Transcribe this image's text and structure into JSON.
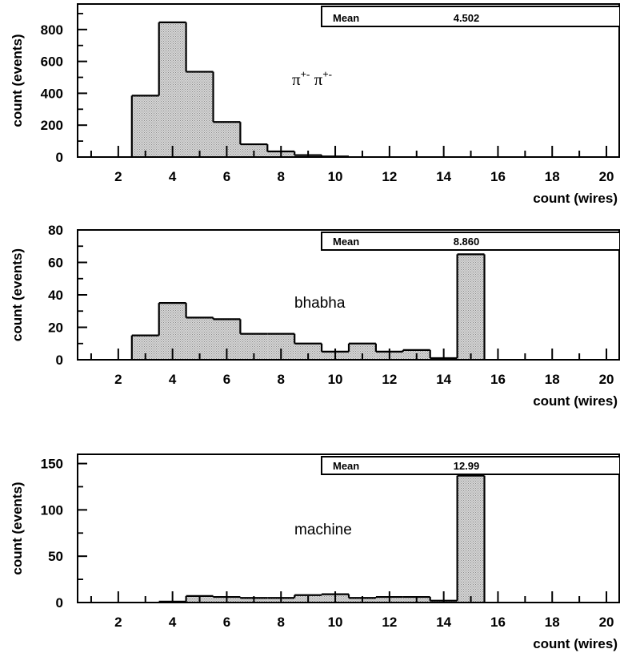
{
  "chart_data": [
    {
      "type": "histogram",
      "annotation": "π⁺⁻ π⁺⁻",
      "annotation_base": "π",
      "annotation_sup": "+-",
      "xlabel": "count (wires)",
      "ylabel": "count (events)",
      "xlim": [
        0.5,
        20.5
      ],
      "ylim": [
        0,
        960
      ],
      "x_ticks": [
        2,
        4,
        6,
        8,
        10,
        12,
        14,
        16,
        18,
        20
      ],
      "y_ticks": [
        0,
        200,
        400,
        600,
        800
      ],
      "stats": {
        "label": "Mean",
        "value": "4.502"
      },
      "bins": [
        1,
        2,
        3,
        4,
        5,
        6,
        7,
        8,
        9,
        10,
        11,
        12,
        13,
        14,
        15,
        16,
        17,
        18,
        19,
        20
      ],
      "values": [
        0,
        0,
        385,
        845,
        535,
        220,
        80,
        35,
        12,
        4,
        0,
        0,
        0,
        0,
        0,
        0,
        0,
        0,
        0,
        0
      ]
    },
    {
      "type": "histogram",
      "annotation": "bhabha",
      "xlabel": "count (wires)",
      "ylabel": "count (events)",
      "xlim": [
        0.5,
        20.5
      ],
      "ylim": [
        0,
        80
      ],
      "x_ticks": [
        2,
        4,
        6,
        8,
        10,
        12,
        14,
        16,
        18,
        20
      ],
      "y_ticks": [
        0,
        20,
        40,
        60,
        80
      ],
      "stats": {
        "label": "Mean",
        "value": "8.860"
      },
      "bins": [
        1,
        2,
        3,
        4,
        5,
        6,
        7,
        8,
        9,
        10,
        11,
        12,
        13,
        14,
        15,
        16,
        17,
        18,
        19,
        20
      ],
      "values": [
        0,
        0,
        15,
        35,
        26,
        25,
        16,
        16,
        10,
        5,
        10,
        5,
        6,
        1,
        65,
        0,
        0,
        0,
        0,
        0
      ]
    },
    {
      "type": "histogram",
      "annotation": "machine",
      "xlabel": "count (wires)",
      "ylabel": "count (events)",
      "xlim": [
        0.5,
        20.5
      ],
      "ylim": [
        0,
        160
      ],
      "x_ticks": [
        2,
        4,
        6,
        8,
        10,
        12,
        14,
        16,
        18,
        20
      ],
      "y_ticks": [
        0,
        50,
        100,
        150
      ],
      "stats": {
        "label": "Mean",
        "value": "12.99"
      },
      "bins": [
        1,
        2,
        3,
        4,
        5,
        6,
        7,
        8,
        9,
        10,
        11,
        12,
        13,
        14,
        15,
        16,
        17,
        18,
        19,
        20
      ],
      "values": [
        0,
        0,
        0,
        1,
        7,
        6,
        5,
        5,
        8,
        9,
        5,
        6,
        6,
        2,
        137,
        0,
        0,
        0,
        0,
        0
      ]
    }
  ],
  "colors": {
    "fill": "#c4c4c4",
    "stroke": "#000000",
    "background": "#ffffff"
  }
}
